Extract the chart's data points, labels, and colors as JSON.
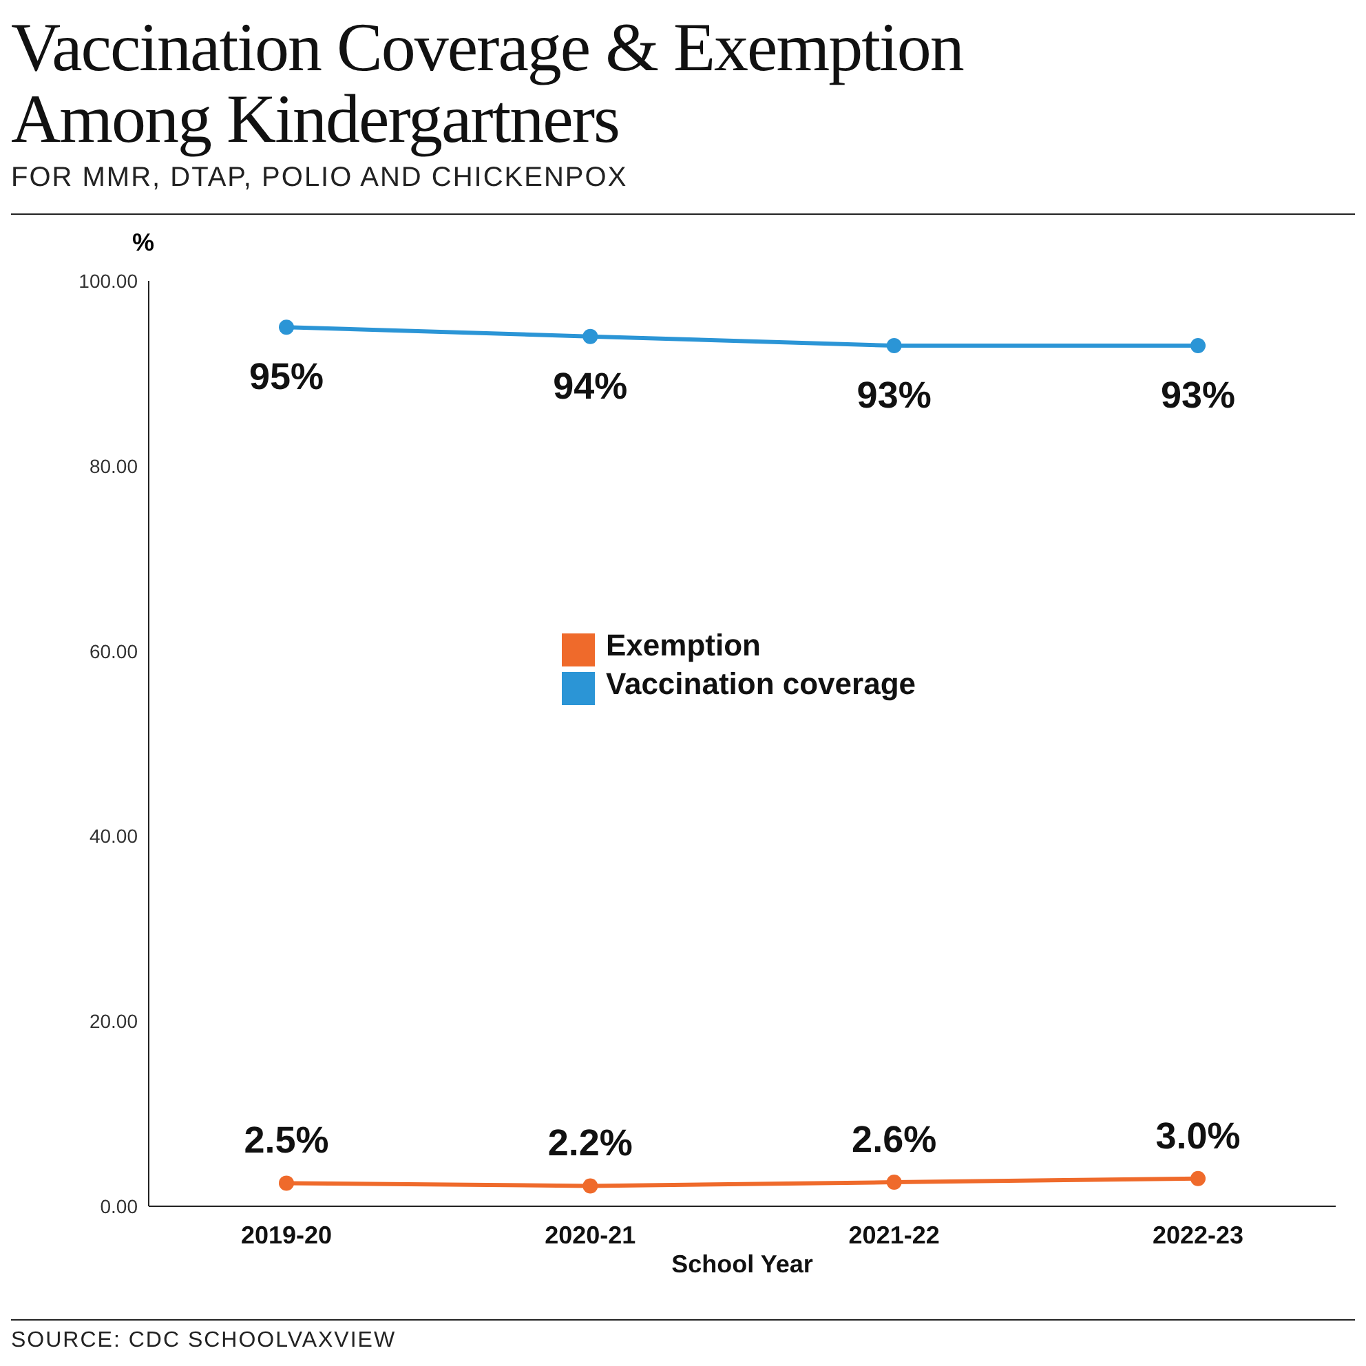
{
  "chart_data": {
    "type": "line",
    "title": "Vaccination Coverage & Exemption Among Kindergartners",
    "subtitle": "FOR MMR, DTAP, POLIO AND CHICKENPOX",
    "ylabel": "%",
    "xlabel": "School Year",
    "annotations": [
      "SOURCE: CDC SCHOOLVAXVIEW"
    ],
    "categories": [
      "2019-20",
      "2020-21",
      "2021-22",
      "2022-23"
    ],
    "series": [
      {
        "name": "Vaccination coverage",
        "color": "#2b95d6",
        "values": [
          95,
          94,
          93,
          93
        ],
        "value_labels": [
          "95%",
          "94%",
          "93%",
          "93%"
        ]
      },
      {
        "name": "Exemption",
        "color": "#ef6a2b",
        "values": [
          2.5,
          2.2,
          2.6,
          3.0
        ],
        "value_labels": [
          "2.5%",
          "2.2%",
          "2.6%",
          "3.0%"
        ]
      }
    ],
    "ylim": [
      0,
      100
    ],
    "yticks": [
      {
        "value": 0,
        "label": "0.00"
      },
      {
        "value": 20,
        "label": "20.00"
      },
      {
        "value": 40,
        "label": "40.00"
      },
      {
        "value": 60,
        "label": "60.00"
      },
      {
        "value": 80,
        "label": "80.00"
      },
      {
        "value": 100,
        "label": "100.00"
      }
    ],
    "grid": false,
    "legend": "center",
    "marker": "circle",
    "line_style": "solid"
  }
}
